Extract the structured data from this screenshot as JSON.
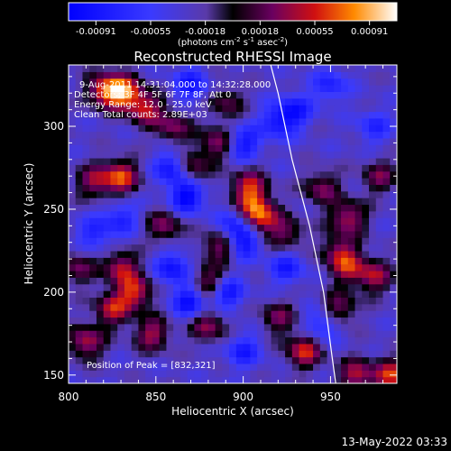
{
  "chart_data": {
    "type": "heatmap",
    "title": "Reconstructed RHESSI Image",
    "xlabel": "Heliocentric X (arcsec)",
    "ylabel": "Heliocentric Y (arcsec)",
    "xlim": [
      800,
      988
    ],
    "ylim": [
      145,
      337
    ],
    "x_ticks": [
      800,
      850,
      900,
      950
    ],
    "y_ticks": [
      150,
      200,
      250,
      300
    ],
    "colorbar": {
      "range": [
        -0.00091,
        0.00091
      ],
      "tick_labels": [
        "-0.00091",
        "-0.00055",
        "-0.00018",
        "0.00018",
        "0.00055",
        "0.00091"
      ],
      "units_prefix": "(photons cm",
      "units_exp1": "-2",
      "units_mid": " s",
      "units_exp2": "-1",
      "units_mid2": " asec",
      "units_exp3": "-2",
      "units_suffix": ")"
    },
    "annotations": [
      "9-Aug-2011 14:31:04.000 to 14:32:28.000",
      "Detectors: 3F 4F 5F 6F 7F 8F, Att 0",
      "Energy Range: 12.0 - 25.0 keV",
      "Clean    Total counts: 2.89E+03"
    ],
    "peak_label": "Position of Peak = [832,321]",
    "peak_position": [
      832,
      321
    ],
    "limb": [
      [
        915,
        340
      ],
      [
        920,
        320
      ],
      [
        928,
        280
      ],
      [
        938,
        240
      ],
      [
        946,
        200
      ],
      [
        951,
        160
      ],
      [
        953,
        145
      ]
    ],
    "bright_sources": [
      {
        "x": 821,
        "y": 322,
        "v": 0.88
      },
      {
        "x": 832,
        "y": 321,
        "v": 0.91
      },
      {
        "x": 844,
        "y": 311,
        "v": 0.72
      },
      {
        "x": 860,
        "y": 300,
        "v": 0.55
      },
      {
        "x": 885,
        "y": 290,
        "v": 0.6
      },
      {
        "x": 815,
        "y": 267,
        "v": 0.6
      },
      {
        "x": 830,
        "y": 270,
        "v": 0.85
      },
      {
        "x": 870,
        "y": 275,
        "v": 0.62
      },
      {
        "x": 903,
        "y": 265,
        "v": 0.6
      },
      {
        "x": 910,
        "y": 245,
        "v": 0.85
      },
      {
        "x": 905,
        "y": 255,
        "v": 0.55
      },
      {
        "x": 945,
        "y": 263,
        "v": 0.55
      },
      {
        "x": 960,
        "y": 245,
        "v": 0.7
      },
      {
        "x": 978,
        "y": 270,
        "v": 0.5
      },
      {
        "x": 887,
        "y": 228,
        "v": 0.65
      },
      {
        "x": 925,
        "y": 235,
        "v": 0.5
      },
      {
        "x": 855,
        "y": 240,
        "v": 0.55
      },
      {
        "x": 830,
        "y": 215,
        "v": 0.7
      },
      {
        "x": 805,
        "y": 215,
        "v": 0.5
      },
      {
        "x": 880,
        "y": 205,
        "v": 0.7
      },
      {
        "x": 955,
        "y": 225,
        "v": 0.55
      },
      {
        "x": 960,
        "y": 215,
        "v": 0.6
      },
      {
        "x": 975,
        "y": 210,
        "v": 0.65
      },
      {
        "x": 838,
        "y": 200,
        "v": 0.78
      },
      {
        "x": 825,
        "y": 190,
        "v": 0.7
      },
      {
        "x": 810,
        "y": 170,
        "v": 0.7
      },
      {
        "x": 848,
        "y": 175,
        "v": 0.65
      },
      {
        "x": 880,
        "y": 180,
        "v": 0.6
      },
      {
        "x": 935,
        "y": 165,
        "v": 0.8
      },
      {
        "x": 965,
        "y": 150,
        "v": 0.7
      },
      {
        "x": 985,
        "y": 150,
        "v": 0.8
      },
      {
        "x": 920,
        "y": 185,
        "v": 0.5
      },
      {
        "x": 955,
        "y": 190,
        "v": 0.55
      },
      {
        "x": 890,
        "y": 315,
        "v": 0.45
      }
    ],
    "dark_sources": [
      {
        "x": 860,
        "y": 275,
        "v": -0.7
      },
      {
        "x": 868,
        "y": 258,
        "v": -0.75
      },
      {
        "x": 900,
        "y": 290,
        "v": -0.6
      },
      {
        "x": 920,
        "y": 303,
        "v": -0.55
      },
      {
        "x": 930,
        "y": 310,
        "v": -0.5
      },
      {
        "x": 895,
        "y": 240,
        "v": -0.5
      },
      {
        "x": 900,
        "y": 230,
        "v": -0.6
      },
      {
        "x": 860,
        "y": 215,
        "v": -0.6
      },
      {
        "x": 870,
        "y": 195,
        "v": -0.7
      },
      {
        "x": 890,
        "y": 200,
        "v": -0.65
      },
      {
        "x": 830,
        "y": 245,
        "v": -0.45
      },
      {
        "x": 925,
        "y": 215,
        "v": -0.5
      },
      {
        "x": 950,
        "y": 325,
        "v": -0.45
      },
      {
        "x": 975,
        "y": 300,
        "v": -0.4
      },
      {
        "x": 945,
        "y": 180,
        "v": -0.5
      },
      {
        "x": 900,
        "y": 165,
        "v": -0.5
      },
      {
        "x": 815,
        "y": 235,
        "v": -0.45
      },
      {
        "x": 870,
        "y": 325,
        "v": -0.55
      }
    ]
  },
  "footer": {
    "timestamp": "13-May-2022 03:33"
  }
}
